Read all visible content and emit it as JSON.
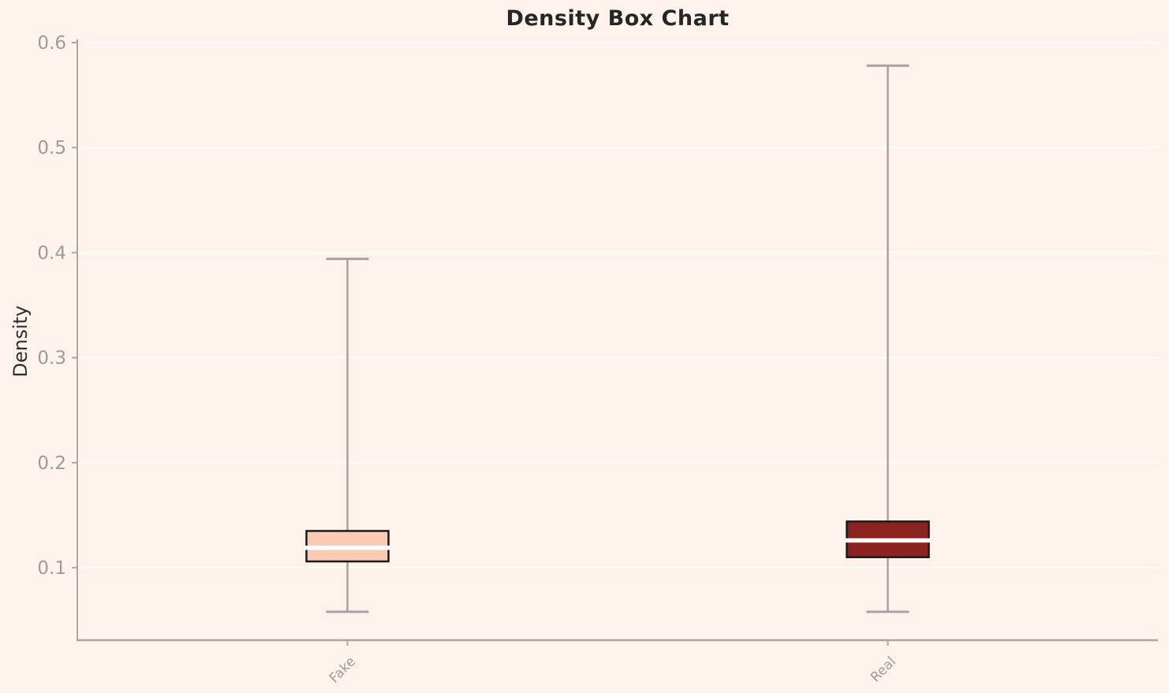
{
  "chart_data": {
    "type": "box",
    "title": "Density Box Chart",
    "xlabel": "",
    "ylabel": "Density",
    "categories": [
      "Fake",
      "Real"
    ],
    "ylim": [
      0.031,
      0.603
    ],
    "yticks": [
      0.1,
      0.2,
      0.3,
      0.4,
      0.5,
      0.6
    ],
    "ytick_labels": [
      "0.1",
      "0.2",
      "0.3",
      "0.4",
      "0.5",
      "0.6"
    ],
    "grid": "horizontal",
    "legend": "none",
    "xtick_rotation_deg": 45,
    "series": [
      {
        "name": "Fake",
        "whislo": 0.058,
        "q1": 0.106,
        "med": 0.119,
        "q3": 0.135,
        "whishi": 0.394,
        "fill": "#f9cbb4"
      },
      {
        "name": "Real",
        "whislo": 0.058,
        "q1": 0.11,
        "med": 0.126,
        "q3": 0.144,
        "whishi": 0.578,
        "fill": "#8b2220"
      }
    ]
  },
  "colors": {
    "background": "#fdf3ec",
    "grid": "rgba(255,255,255,0.85)",
    "spine": "#aaa7a4",
    "whisker": "#a5a2a0",
    "tick_label": "#9b9b9b",
    "title": "#262626",
    "axis_label": "#2e2e2e",
    "box_border": "#1a1a1a",
    "median": "#ffffff"
  }
}
